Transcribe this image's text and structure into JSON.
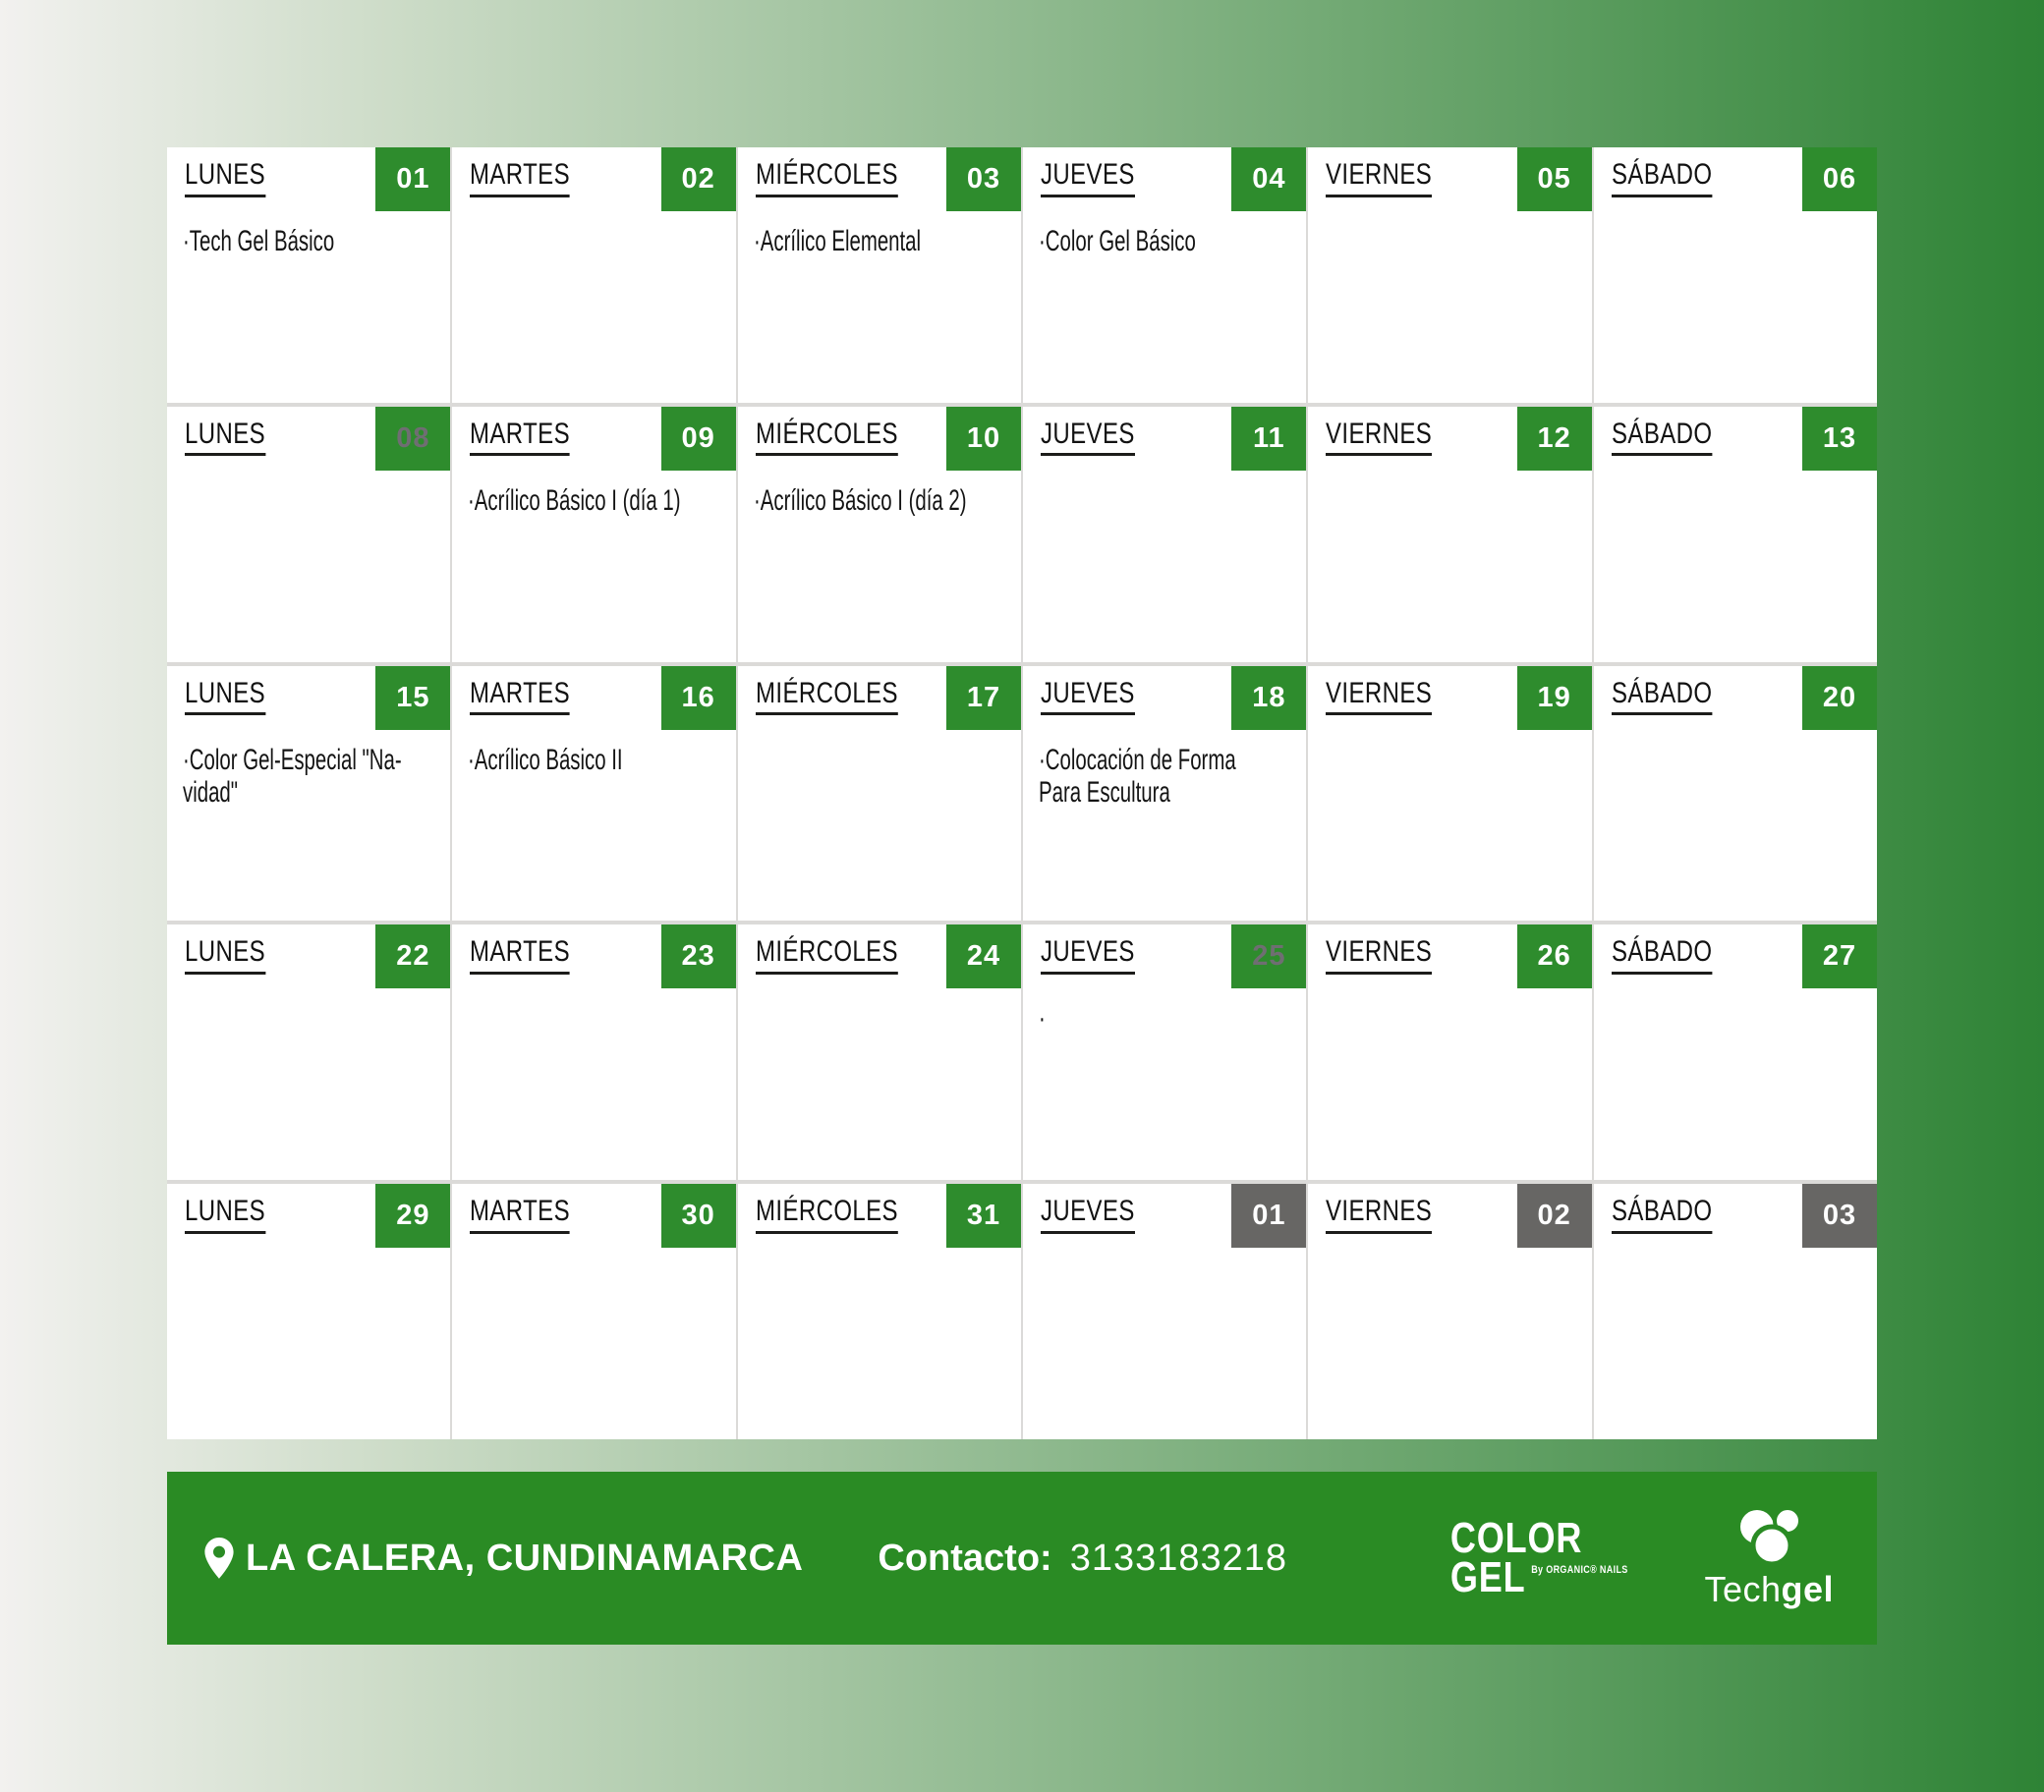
{
  "calendar": {
    "rows": [
      {
        "cells": [
          {
            "day": "LUNES",
            "num": "01",
            "variant": "green",
            "text": "·Tech Gel Básico"
          },
          {
            "day": "MARTES",
            "num": "02",
            "variant": "green",
            "text": ""
          },
          {
            "day": "MIÉRCOLES",
            "num": "03",
            "variant": "green",
            "text": "·Acrílico Elemental"
          },
          {
            "day": "JUEVES",
            "num": "04",
            "variant": "green",
            "text": "·Color Gel Básico"
          },
          {
            "day": "VIERNES",
            "num": "05",
            "variant": "green",
            "text": ""
          },
          {
            "day": "SÁBADO",
            "num": "06",
            "variant": "green",
            "text": ""
          }
        ]
      },
      {
        "cells": [
          {
            "day": "LUNES",
            "num": "08",
            "variant": "green-muted",
            "text": ""
          },
          {
            "day": "MARTES",
            "num": "09",
            "variant": "green",
            "text": "·Acrílico Básico I (día 1)"
          },
          {
            "day": "MIÉRCOLES",
            "num": "10",
            "variant": "green",
            "text": "·Acrílico Básico I (día 2)"
          },
          {
            "day": "JUEVES",
            "num": "11",
            "variant": "green",
            "text": ""
          },
          {
            "day": "VIERNES",
            "num": "12",
            "variant": "green",
            "text": ""
          },
          {
            "day": "SÁBADO",
            "num": "13",
            "variant": "green",
            "text": ""
          }
        ]
      },
      {
        "cells": [
          {
            "day": "LUNES",
            "num": "15",
            "variant": "green",
            "text": "·Color Gel-Especial \"Na-\nvidad\""
          },
          {
            "day": "MARTES",
            "num": "16",
            "variant": "green",
            "text": "·Acrílico Básico II"
          },
          {
            "day": "MIÉRCOLES",
            "num": "17",
            "variant": "green",
            "text": ""
          },
          {
            "day": "JUEVES",
            "num": "18",
            "variant": "green",
            "text": "·Colocación de Forma\nPara Escultura"
          },
          {
            "day": "VIERNES",
            "num": "19",
            "variant": "green",
            "text": ""
          },
          {
            "day": "SÁBADO",
            "num": "20",
            "variant": "green",
            "text": ""
          }
        ]
      },
      {
        "cells": [
          {
            "day": "LUNES",
            "num": "22",
            "variant": "green",
            "text": ""
          },
          {
            "day": "MARTES",
            "num": "23",
            "variant": "green",
            "text": ""
          },
          {
            "day": "MIÉRCOLES",
            "num": "24",
            "variant": "green",
            "text": ""
          },
          {
            "day": "JUEVES",
            "num": "25",
            "variant": "green-muted",
            "text": "·"
          },
          {
            "day": "VIERNES",
            "num": "26",
            "variant": "green",
            "text": ""
          },
          {
            "day": "SÁBADO",
            "num": "27",
            "variant": "green",
            "text": ""
          }
        ]
      },
      {
        "cells": [
          {
            "day": "LUNES",
            "num": "29",
            "variant": "green",
            "text": ""
          },
          {
            "day": "MARTES",
            "num": "30",
            "variant": "green",
            "text": ""
          },
          {
            "day": "MIÉRCOLES",
            "num": "31",
            "variant": "green",
            "text": ""
          },
          {
            "day": "JUEVES",
            "num": "01",
            "variant": "gray",
            "text": ""
          },
          {
            "day": "VIERNES",
            "num": "02",
            "variant": "gray",
            "text": ""
          },
          {
            "day": "SÁBADO",
            "num": "03",
            "variant": "gray",
            "text": ""
          }
        ]
      }
    ]
  },
  "footer": {
    "location": "LA CALERA, CUNDINAMARCA",
    "contact_label": "Contacto:",
    "contact_number": "3133183218",
    "logo_color": "COLOR",
    "logo_gel": "GEL",
    "logo_by": "By ORGANIC® NAILS",
    "logo_tech_light": "Tech",
    "logo_tech_bold": "gel"
  },
  "colors": {
    "badge_green": "#2e8c2d",
    "badge_gray": "#676664",
    "muted_number": "#6f6e72",
    "footer_green": "#2a8b24",
    "background_start": "#f2f1ef",
    "background_end": "#2e8335"
  }
}
